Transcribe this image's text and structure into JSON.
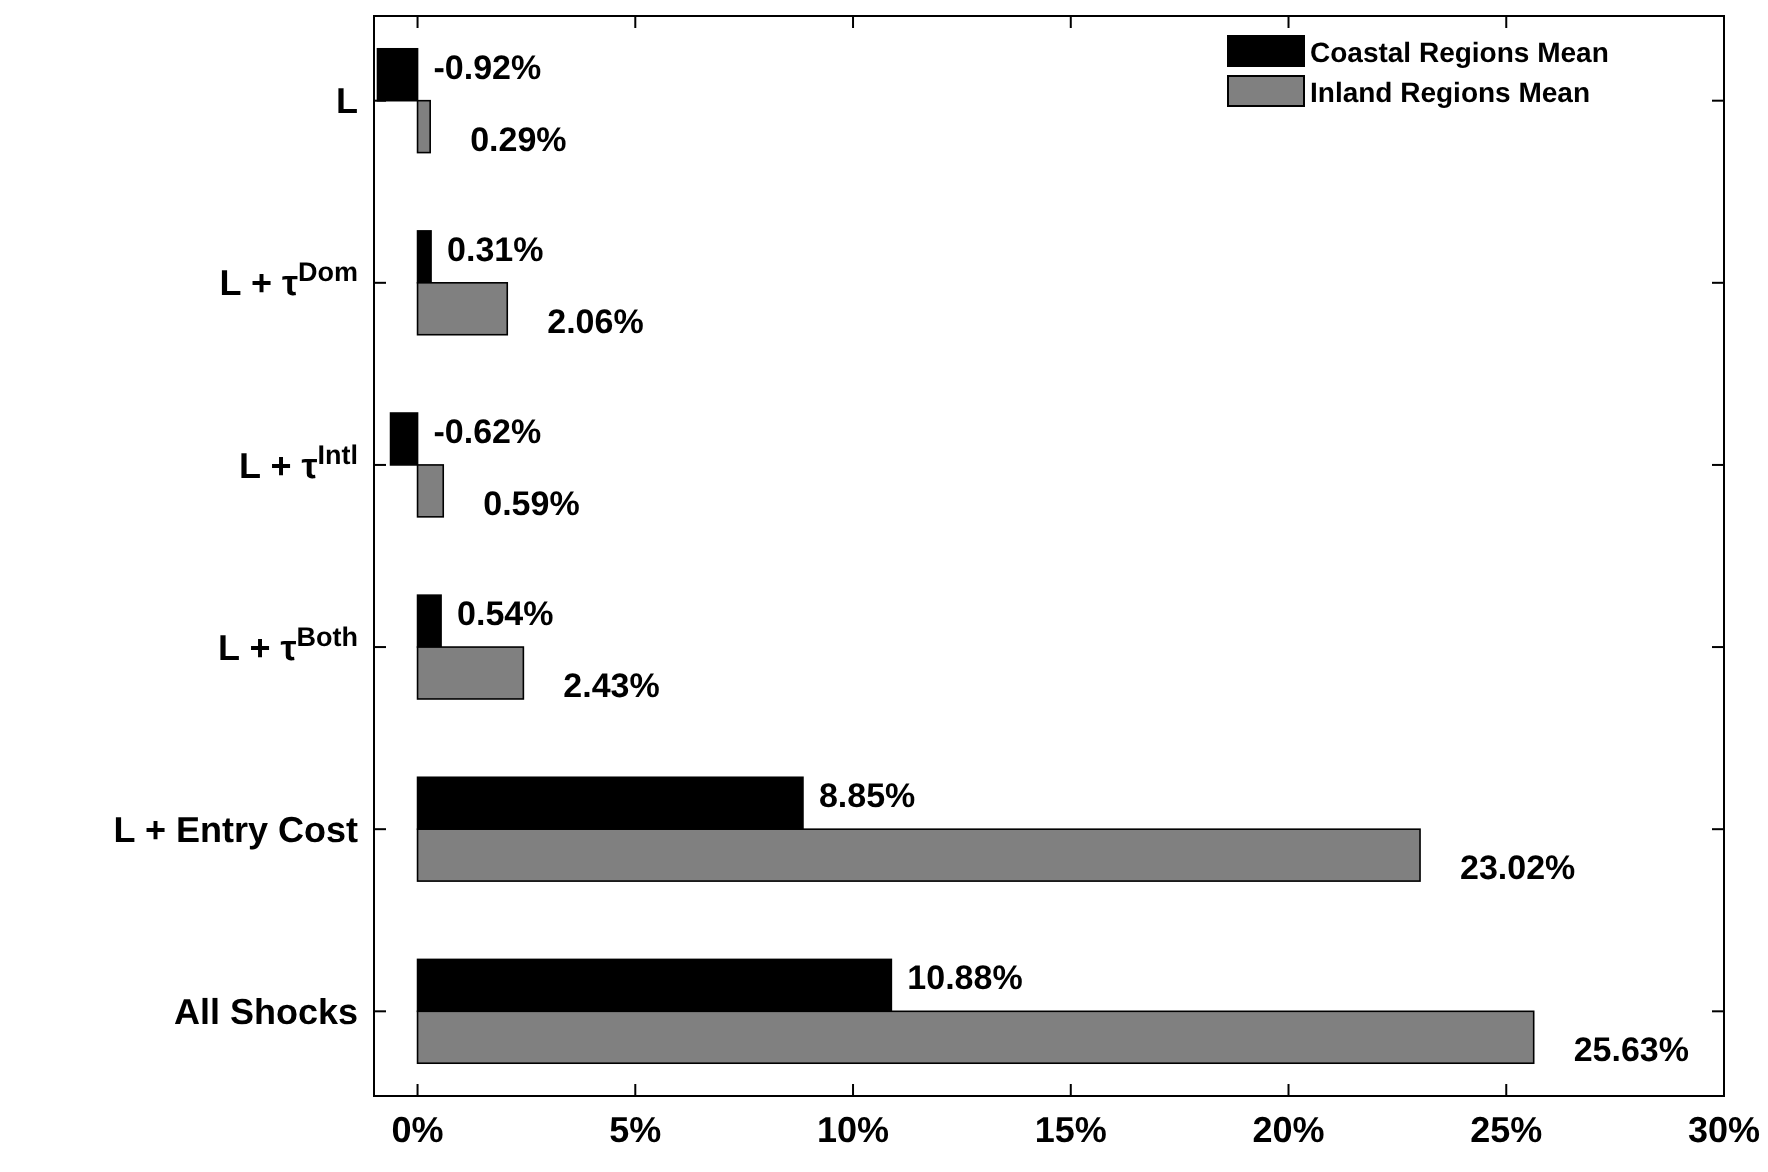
{
  "chart_data": {
    "type": "bar",
    "orientation": "horizontal",
    "categories": [
      "L",
      "L + τ$^{Dom}$",
      "L + τ$^{Intl}$",
      "L + τ$^{Both}$",
      "L + Entry Cost",
      "All Shocks"
    ],
    "series": [
      {
        "name": "Coastal Regions Mean",
        "color": "#000000",
        "values": [
          -0.92,
          0.31,
          -0.62,
          0.54,
          8.85,
          10.88
        ],
        "value_labels": [
          "-0.92%",
          "0.31%",
          "-0.62%",
          "0.54%",
          "8.85%",
          "10.88%"
        ]
      },
      {
        "name": "Inland Regions Mean",
        "color": "#808080",
        "values": [
          0.29,
          2.06,
          0.59,
          2.43,
          23.02,
          25.63
        ],
        "value_labels": [
          "0.29%",
          "2.06%",
          "0.59%",
          "2.43%",
          "23.02%",
          "25.63%"
        ]
      }
    ],
    "xlim": [
      -1,
      30
    ],
    "xticks": [
      {
        "value": 0,
        "label": "0%"
      },
      {
        "value": 5,
        "label": "5%"
      },
      {
        "value": 10,
        "label": "10%"
      },
      {
        "value": 15,
        "label": "15%"
      },
      {
        "value": 20,
        "label": "20%"
      },
      {
        "value": 25,
        "label": "25%"
      },
      {
        "value": 30,
        "label": "30%"
      }
    ],
    "legend": "top right",
    "grid": false
  }
}
